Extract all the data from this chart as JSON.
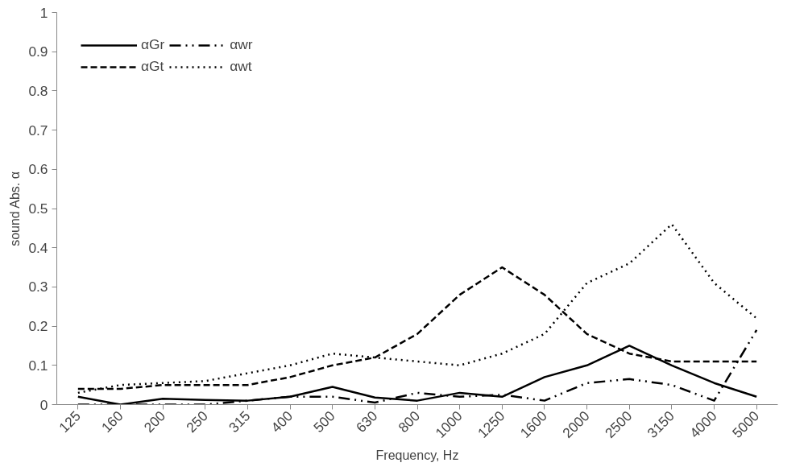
{
  "chart_data": {
    "type": "line",
    "xlabel": "Frequency, Hz",
    "ylabel": "sound Abs. α",
    "categories": [
      "125",
      "160",
      "200",
      "250",
      "315",
      "400",
      "500",
      "630",
      "800",
      "1000",
      "1250",
      "1600",
      "2000",
      "2500",
      "3150",
      "4000",
      "5000"
    ],
    "ylim": [
      0,
      1
    ],
    "yticks": [
      0,
      0.1,
      0.2,
      0.3,
      0.4,
      0.5,
      0.6,
      0.7,
      0.8,
      0.9,
      1
    ],
    "grid": false,
    "legend": "top left",
    "marker": "none",
    "series": [
      {
        "name": "αGr",
        "color": "#000000",
        "line_style": "solid",
        "values": [
          0.02,
          0,
          0.015,
          0.012,
          0.01,
          0.02,
          0.045,
          0.018,
          0.01,
          0.03,
          0.02,
          0.07,
          0.1,
          0.15,
          0.1,
          0.055,
          0.02
        ]
      },
      {
        "name": "αGt",
        "color": "#000000",
        "line_style": "dashed",
        "values": [
          0.04,
          0.04,
          0.05,
          0.05,
          0.05,
          0.07,
          0.1,
          0.12,
          0.18,
          0.28,
          0.35,
          0.28,
          0.18,
          0.13,
          0.11,
          0.11,
          0.11
        ]
      },
      {
        "name": "αwr",
        "color": "#000000",
        "line_style": "dashdot",
        "values": [
          0,
          0,
          0,
          0,
          0.01,
          0.02,
          0.02,
          0.005,
          0.03,
          0.02,
          0.025,
          0.01,
          0.055,
          0.065,
          0.05,
          0.01,
          0.19
        ]
      },
      {
        "name": "αwt",
        "color": "#000000",
        "line_style": "dotted",
        "values": [
          0.03,
          0.05,
          0.055,
          0.06,
          0.08,
          0.1,
          0.13,
          0.12,
          0.11,
          0.1,
          0.13,
          0.18,
          0.31,
          0.36,
          0.46,
          0.31,
          0.22
        ]
      }
    ]
  }
}
